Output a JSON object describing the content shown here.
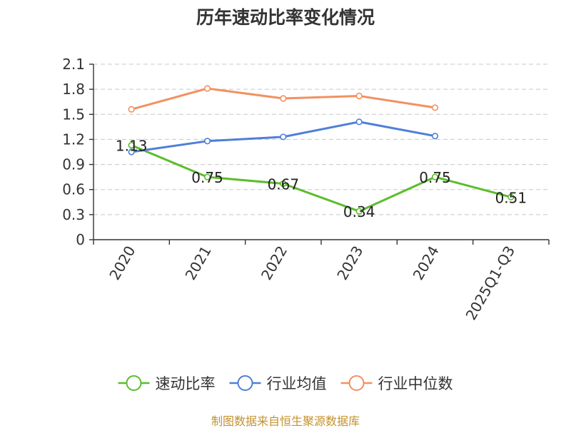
{
  "chart_data": {
    "type": "line",
    "title": "历年速动比率变化情况",
    "categories": [
      "2020",
      "2021",
      "2022",
      "2023",
      "2024",
      "2025Q1-Q3"
    ],
    "y_ticks": [
      "0",
      "0.3",
      "0.6",
      "0.9",
      "1.2",
      "1.5",
      "1.8",
      "2.1"
    ],
    "ylim": [
      0,
      2.1
    ],
    "grid": true,
    "legend_position": "bottom",
    "series": [
      {
        "name": "速动比率",
        "color": "#5bbd2b",
        "values": [
          1.13,
          0.75,
          0.67,
          0.34,
          0.75,
          0.51
        ],
        "labels": [
          "1.13",
          "0.75",
          "0.67",
          "0.34",
          "0.75",
          "0.51"
        ]
      },
      {
        "name": "行业均值",
        "color": "#4e7fd9",
        "values": [
          1.05,
          1.18,
          1.23,
          1.41,
          1.24,
          null
        ]
      },
      {
        "name": "行业中位数",
        "color": "#f29160",
        "values": [
          1.56,
          1.81,
          1.69,
          1.72,
          1.58,
          null
        ]
      }
    ]
  },
  "footer": {
    "source": "制图数据来自恒生聚源数据库"
  }
}
